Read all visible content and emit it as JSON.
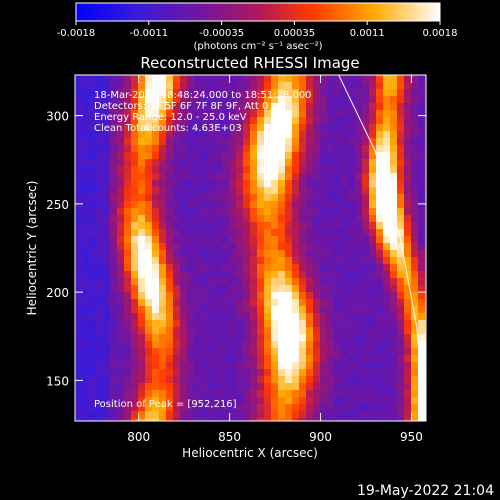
{
  "chart_data": {
    "type": "heatmap",
    "title": "Reconstructed RHESSI Image",
    "xlabel": "Heliocentric X (arcsec)",
    "ylabel": "Heliocentric Y (arcsec)",
    "xlim": [
      765,
      958
    ],
    "ylim": [
      127,
      323
    ],
    "xticks": [
      800,
      850,
      900,
      950
    ],
    "yticks": [
      150,
      200,
      250,
      300
    ],
    "colorbar": {
      "min": -0.0018,
      "max": 0.0018,
      "ticks": [
        "-0.0018",
        "-0.0011",
        "-0.00035",
        "0.00035",
        "0.0011",
        "0.0018"
      ],
      "unit_label": "(photons cm⁻² s⁻¹ asec⁻²)"
    },
    "annotations": [
      "18-Mar-2015 18:48:24.000 to 18:51:28.000",
      "Detectors: 3F 5F 6F 7F 8F 9F, Att 0",
      "Energy Range: 12.0 - 25.0 keV",
      "Clean    Total counts: 4.63E+03"
    ],
    "peak_label": "Position of Peak = [952,216]",
    "peak": [
      952,
      216
    ],
    "bright_bands": [
      {
        "x_center": 806,
        "width": 18,
        "level": 0.78
      },
      {
        "x_center": 877,
        "width": 22,
        "level": 0.85
      },
      {
        "x_center": 948,
        "width": 14,
        "level": 0.95
      }
    ],
    "limb_curve": [
      [
        910,
        323
      ],
      [
        930,
        280
      ],
      [
        944,
        230
      ],
      [
        953,
        180
      ],
      [
        957,
        127
      ]
    ]
  },
  "footer": {
    "timestamp": "19-May-2022 21:04"
  }
}
